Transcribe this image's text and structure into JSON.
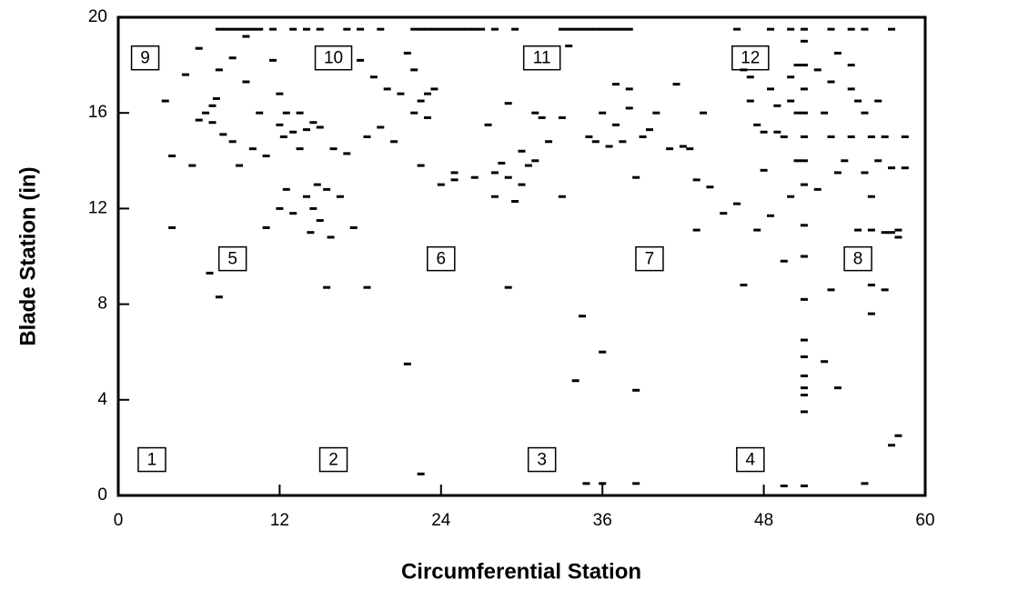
{
  "chart_data": {
    "type": "scatter",
    "xlabel": "Circumferential Station",
    "ylabel": "Blade Station (in)",
    "xlim": [
      0,
      60
    ],
    "ylim": [
      0,
      20
    ],
    "xticks": [
      0,
      12,
      24,
      36,
      48,
      60
    ],
    "yticks": [
      0,
      4,
      8,
      12,
      16,
      20
    ],
    "color": "#000000",
    "annotations": [
      "1",
      "2",
      "3",
      "4",
      "5",
      "6",
      "7",
      "8",
      "9",
      "10",
      "11",
      "12"
    ],
    "x": [
      7.5,
      8,
      8.5,
      9,
      9.5,
      10,
      10.5,
      11.5,
      13,
      14,
      15,
      17,
      18,
      19.5,
      22,
      22.5,
      23,
      23.5,
      24,
      24.5,
      25,
      25.5,
      26,
      26.5,
      27,
      28,
      29.5,
      33,
      33.5,
      34,
      34.5,
      35,
      35.5,
      36,
      36.5,
      37,
      37.5,
      38,
      46,
      48.5,
      50,
      51,
      53,
      54.5,
      55.5,
      57.5,
      3.5,
      4,
      4,
      5,
      5.5,
      6,
      6,
      6.5,
      6.8,
      7,
      7,
      7.3,
      7.5,
      7.5,
      7.8,
      8.5,
      8.5,
      9,
      9.5,
      9.5,
      10,
      10.5,
      11,
      11,
      11.5,
      12,
      12,
      12,
      12.3,
      12.5,
      12.5,
      13,
      13,
      13.5,
      13.5,
      14,
      14,
      14.3,
      14.5,
      14.5,
      14.8,
      15,
      15,
      15.5,
      15.5,
      15.8,
      16,
      16.5,
      17,
      17.5,
      18,
      18.5,
      18.5,
      19,
      19.5,
      20,
      20.5,
      21,
      21.5,
      21.5,
      22,
      22,
      22.5,
      22.5,
      22.5,
      23,
      23,
      23.5,
      24,
      25,
      25,
      26.5,
      27.5,
      28,
      28,
      28.5,
      29,
      29,
      29,
      29.5,
      30,
      30,
      30.5,
      31,
      31,
      31.5,
      32,
      33,
      33,
      33.5,
      34,
      34.5,
      34.8,
      35,
      35.5,
      36,
      36,
      36,
      36.5,
      37,
      37,
      37.5,
      38,
      38,
      38.5,
      38.5,
      38.5,
      39,
      39.5,
      40,
      41,
      41.5,
      42,
      42.5,
      43,
      43,
      43.5,
      44,
      45,
      46,
      46.5,
      46.5,
      47,
      47,
      47.5,
      47.5,
      48,
      48,
      48.5,
      48.5,
      49,
      49,
      49.5,
      49.5,
      49.5,
      50,
      50,
      50,
      50.5,
      50.5,
      50.5,
      51,
      51,
      51,
      51,
      51,
      51,
      51,
      51,
      51,
      51,
      51,
      51,
      51,
      51,
      51,
      51,
      51,
      52,
      52,
      52.5,
      52.5,
      53,
      53,
      53,
      53.5,
      53.5,
      53.5,
      54,
      54.5,
      54.5,
      54.5,
      55,
      55,
      55.5,
      55.5,
      55.5,
      56,
      56,
      56,
      56,
      56,
      56.5,
      56.5,
      57,
      57,
      57,
      57.5,
      57.5,
      57.5,
      58,
      58,
      58,
      58.5,
      58.5
    ],
    "y": [
      19.5,
      19.5,
      19.5,
      19.5,
      19.5,
      19.5,
      19.5,
      19.5,
      19.5,
      19.5,
      19.5,
      19.5,
      19.5,
      19.5,
      19.5,
      19.5,
      19.5,
      19.5,
      19.5,
      19.5,
      19.5,
      19.5,
      19.5,
      19.5,
      19.5,
      19.5,
      19.5,
      19.5,
      19.5,
      19.5,
      19.5,
      19.5,
      19.5,
      19.5,
      19.5,
      19.5,
      19.5,
      19.5,
      19.5,
      19.5,
      19.5,
      19.5,
      19.5,
      19.5,
      19.5,
      19.5,
      16.5,
      14.2,
      11.2,
      17.6,
      13.8,
      18.7,
      15.7,
      16.0,
      9.3,
      16.3,
      15.6,
      16.6,
      8.3,
      17.8,
      15.1,
      18.3,
      14.8,
      13.8,
      17.3,
      19.2,
      14.5,
      16.0,
      11.2,
      14.2,
      18.2,
      16.8,
      12.0,
      15.5,
      15.0,
      12.8,
      16.0,
      15.2,
      11.8,
      14.5,
      16.0,
      12.5,
      15.3,
      11.0,
      15.6,
      12.0,
      13.0,
      11.5,
      15.4,
      12.8,
      8.7,
      10.8,
      14.5,
      12.5,
      14.3,
      11.2,
      18.2,
      15.0,
      8.7,
      17.5,
      15.4,
      17.0,
      14.8,
      16.8,
      18.5,
      5.5,
      16.0,
      17.8,
      13.8,
      16.5,
      0.9,
      15.8,
      16.8,
      17.0,
      13.0,
      13.5,
      13.2,
      13.3,
      15.5,
      13.5,
      12.5,
      13.9,
      16.4,
      13.3,
      8.7,
      12.3,
      14.4,
      13.0,
      13.8,
      14.0,
      16.0,
      15.8,
      14.8,
      12.5,
      15.8,
      18.8,
      4.8,
      7.5,
      0.5,
      15.0,
      14.8,
      16.0,
      6.0,
      0.5,
      14.6,
      17.2,
      15.5,
      14.8,
      16.2,
      17.0,
      13.3,
      4.4,
      0.5,
      15.0,
      15.3,
      16.0,
      14.5,
      17.2,
      14.6,
      14.5,
      11.1,
      13.2,
      16.0,
      12.9,
      11.8,
      12.2,
      17.8,
      8.8,
      16.5,
      17.5,
      15.5,
      11.1,
      15.2,
      13.6,
      11.7,
      17.0,
      15.2,
      16.3,
      9.8,
      15.0,
      0.4,
      16.5,
      12.5,
      17.5,
      14.0,
      16.0,
      18.0,
      11.3,
      10.0,
      8.2,
      6.5,
      5.8,
      5.0,
      4.5,
      4.2,
      3.5,
      0.4,
      13.0,
      14.0,
      15.0,
      16.0,
      17.0,
      18.0,
      19.0,
      17.8,
      12.8,
      5.6,
      16.0,
      8.6,
      17.3,
      15.0,
      18.5,
      13.5,
      4.5,
      14.0,
      18.0,
      17.0,
      15.0,
      16.5,
      11.1,
      13.5,
      16.0,
      0.5,
      11.1,
      12.5,
      15.0,
      8.8,
      7.6,
      14.0,
      16.5,
      11.0,
      15.0,
      8.6,
      11.0,
      13.7,
      2.1,
      2.5,
      10.8,
      11.1,
      13.7,
      15.0
    ]
  }
}
